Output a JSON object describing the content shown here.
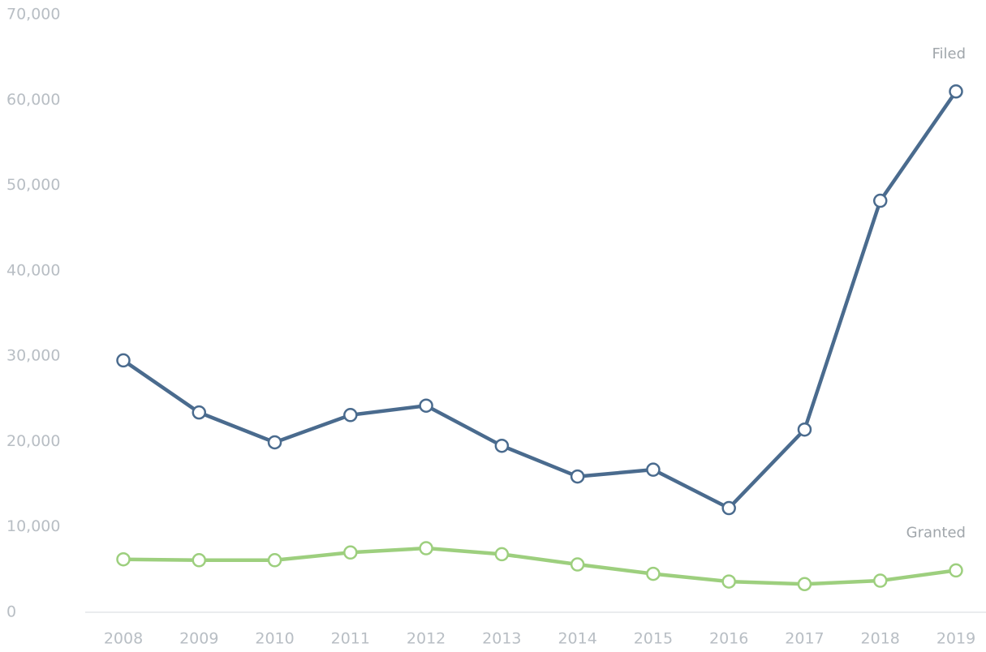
{
  "chart_data": {
    "type": "line",
    "categories": [
      "2008",
      "2009",
      "2010",
      "2011",
      "2012",
      "2013",
      "2014",
      "2015",
      "2016",
      "2017",
      "2018",
      "2019"
    ],
    "series": [
      {
        "name": "Filed",
        "color": "#4a6b8e",
        "values": [
          29500,
          23400,
          19900,
          23100,
          24200,
          19500,
          15900,
          16700,
          12200,
          21400,
          48200,
          61000
        ]
      },
      {
        "name": "Granted",
        "color": "#9dcf7e",
        "values": [
          6200,
          6100,
          6100,
          7000,
          7500,
          6800,
          5600,
          4500,
          3600,
          3300,
          3700,
          4900
        ]
      }
    ],
    "ylim": [
      0,
      70000
    ],
    "yticks": [
      0,
      {
        "value": 10000,
        "label": "10,000"
      },
      {
        "value": 20000,
        "label": "20,000"
      },
      {
        "value": 30000,
        "label": "30,000"
      },
      {
        "value": 40000,
        "label": "40,000"
      },
      {
        "value": 50000,
        "label": "50,000"
      },
      {
        "value": 60000,
        "label": "60,000"
      },
      {
        "value": 70000,
        "label": "70,000"
      }
    ]
  }
}
